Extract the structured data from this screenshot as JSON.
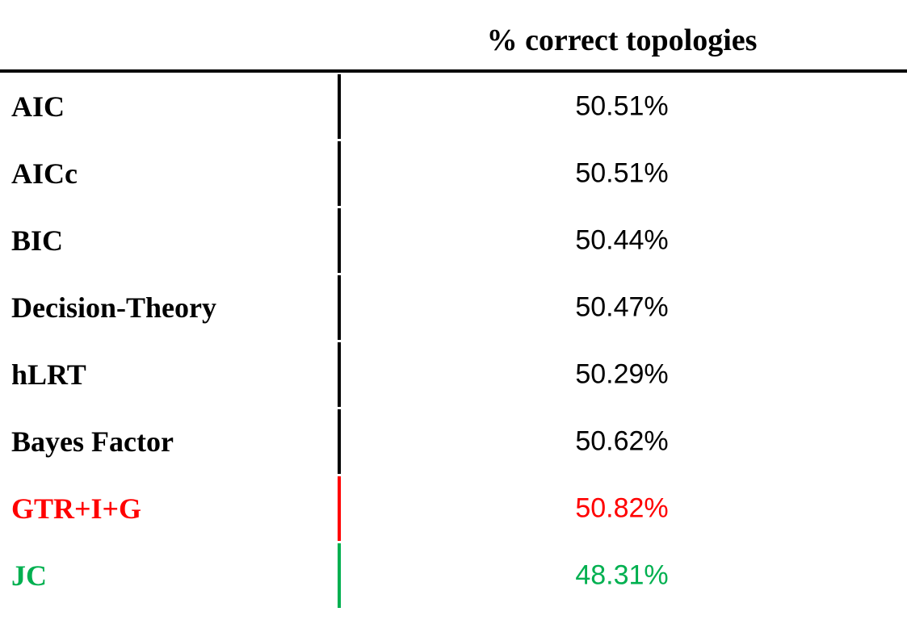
{
  "table": {
    "header": {
      "title": "% correct topologies"
    },
    "rows": [
      {
        "label": "AIC",
        "value": "50.51%",
        "color": "#000000"
      },
      {
        "label": "AICc",
        "value": "50.51%",
        "color": "#000000"
      },
      {
        "label": "BIC",
        "value": "50.44%",
        "color": "#000000"
      },
      {
        "label": "Decision-Theory",
        "value": "50.47%",
        "color": "#000000"
      },
      {
        "label": "hLRT",
        "value": "50.29%",
        "color": "#000000"
      },
      {
        "label": "Bayes Factor",
        "value": "50.62%",
        "color": "#000000"
      },
      {
        "label": "GTR+I+G",
        "value": "50.82%",
        "color": "#ff0000"
      },
      {
        "label": "JC",
        "value": "48.31%",
        "color": "#00b050"
      }
    ]
  }
}
